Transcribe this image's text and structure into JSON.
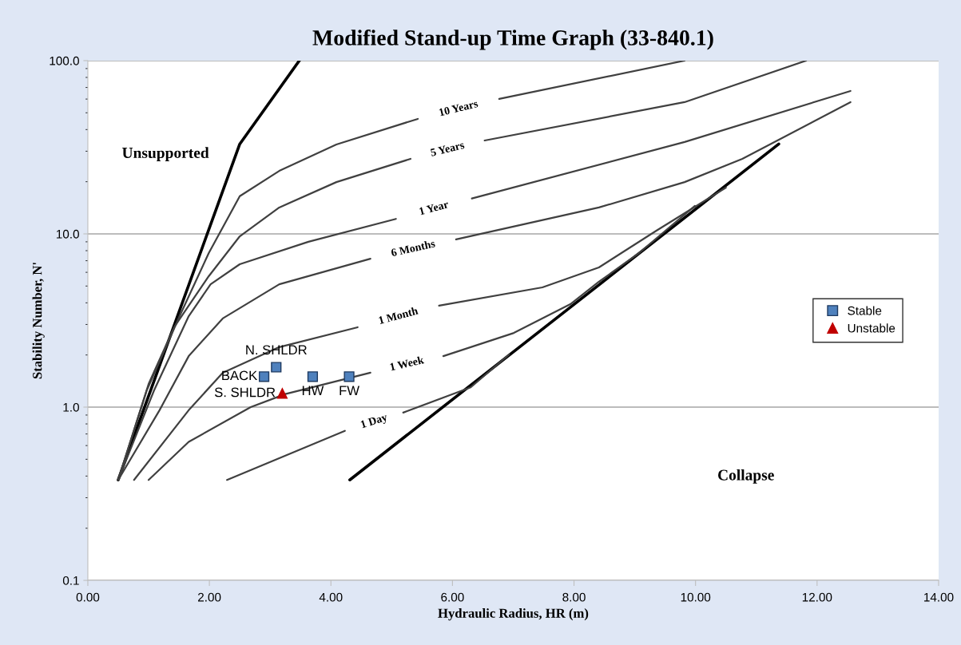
{
  "chart_data": {
    "type": "line",
    "title": "Modified Stand-up Time Graph (33-840.1)",
    "xlabel": "Hydraulic Radius, HR (m)",
    "ylabel": "Stability Number, N'",
    "log": "y",
    "grid": "y",
    "legend": "right",
    "xlim": [
      0,
      14
    ],
    "xticks": [
      {
        "value": 0,
        "label": "0.00"
      },
      {
        "value": 2,
        "label": "2.00"
      },
      {
        "value": 4,
        "label": "4.00"
      },
      {
        "value": 6,
        "label": "6.00"
      },
      {
        "value": 8,
        "label": "8.00"
      },
      {
        "value": 10,
        "label": "10.00"
      },
      {
        "value": 12,
        "label": "12.00"
      },
      {
        "value": 14,
        "label": "14.00"
      }
    ],
    "ylim": [
      0.1,
      100
    ],
    "yticks": [
      {
        "value": 0.1,
        "label": "0.1"
      },
      {
        "value": 1,
        "label": "1.0"
      },
      {
        "value": 10,
        "label": "10.0"
      },
      {
        "value": 100,
        "label": "100.0"
      }
    ],
    "series": [
      {
        "color": "#000000",
        "x": [
          0.5,
          2.5,
          3.48
        ],
        "values": [
          0.38,
          33,
          100
        ]
      },
      {
        "color": "#000000",
        "x": [
          4.31,
          11.37
        ],
        "values": [
          0.38,
          33
        ]
      },
      {
        "name": "10 Years",
        "color": "#404040",
        "x": [
          0.5,
          0.97,
          1.51,
          1.99,
          2.5,
          3.15,
          4.09,
          5.43,
          null,
          6.77,
          9.82
        ],
        "values": [
          0.38,
          1.25,
          3.35,
          7.75,
          16.5,
          23.1,
          32.8,
          46.1,
          null,
          60.1,
          100
        ]
      },
      {
        "name": "5 Years",
        "color": "#404040",
        "x": [
          0.5,
          1.0,
          1.42,
          1.99,
          2.5,
          3.15,
          4.09,
          5.31,
          null,
          6.53,
          9.82,
          11.82
        ],
        "values": [
          0.38,
          1.36,
          2.89,
          5.7,
          9.68,
          14.2,
          19.9,
          27.1,
          null,
          34.6,
          57.6,
          100
        ]
      },
      {
        "name": "1 Year",
        "color": "#404040",
        "x": [
          0.5,
          1.09,
          1.66,
          2.02,
          2.5,
          3.63,
          5.07,
          null,
          6.32,
          9.82,
          12.55
        ],
        "values": [
          0.38,
          1.25,
          3.35,
          5.12,
          6.68,
          9.0,
          12.2,
          null,
          16.0,
          33.9,
          66.8
        ]
      },
      {
        "name": "6 Months",
        "color": "#404040",
        "x": [
          0.5,
          1.18,
          1.66,
          2.22,
          3.15,
          4.65,
          null,
          6.06,
          8.41,
          9.82,
          10.77,
          12.55
        ],
        "values": [
          0.38,
          0.96,
          1.97,
          3.25,
          5.12,
          7.19,
          null,
          9.29,
          14.2,
          19.9,
          27.1,
          57.6
        ]
      },
      {
        "name": "1 Month",
        "color": "#404040",
        "x": [
          0.76,
          1.66,
          2.22,
          3.15,
          4.44,
          null,
          5.78,
          7.48,
          8.41,
          9.35,
          10.5
        ],
        "values": [
          0.38,
          0.96,
          1.58,
          2.22,
          2.89,
          null,
          3.85,
          4.91,
          6.4,
          10.4,
          18.5
        ]
      },
      {
        "name": "1 Week",
        "color": "#404040",
        "x": [
          1.0,
          1.66,
          2.68,
          3.25,
          4.65,
          null,
          5.85,
          7.01,
          7.94,
          8.41,
          9.07,
          9.99
        ],
        "values": [
          0.38,
          0.63,
          1.0,
          1.19,
          1.58,
          null,
          1.97,
          2.68,
          3.93,
          5.29,
          7.75,
          14.5
        ]
      },
      {
        "name": "1 Day",
        "color": "#404040",
        "x": [
          2.29,
          4.23,
          null,
          5.19,
          6.3,
          6.93
        ],
        "values": [
          0.38,
          0.73,
          null,
          0.93,
          1.3,
          2.01
        ]
      },
      {
        "type": "scatter",
        "name": "Stable",
        "color": "#4f81bd",
        "marker": "square",
        "x": [
          2.9,
          3.1,
          3.7,
          4.3
        ],
        "values": [
          1.5,
          1.7,
          1.5,
          1.5
        ],
        "value_labels": [
          "BACK",
          "N. SHLDR",
          "HW",
          "FW"
        ]
      },
      {
        "type": "scatter",
        "name": "Unstable",
        "color": "#c00000",
        "marker": "triangle",
        "x": [
          3.2
        ],
        "values": [
          1.2
        ],
        "value_labels": [
          "S. SHLDR"
        ]
      }
    ],
    "annotations": [
      "Unsupported",
      "Collapse"
    ]
  }
}
